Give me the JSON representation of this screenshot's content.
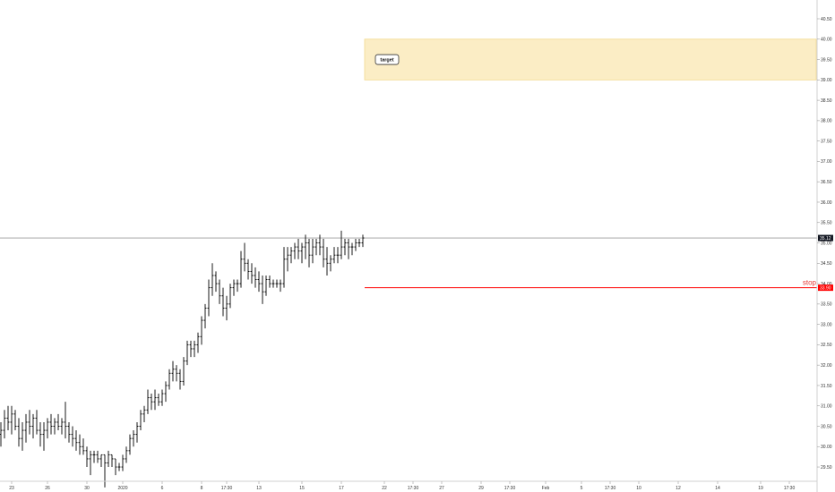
{
  "chart_data": {
    "type": "ohlc",
    "colors": {
      "bars": "#000000",
      "target_fill": "#fbedc5",
      "target_border": "#f2d98f",
      "stop_line": "#ff0000",
      "last_price_line": "#9e9e9e",
      "axis_text": "#333333"
    },
    "y_axis": {
      "ylim": [
        29.1,
        41.0
      ],
      "position": "right",
      "ticks": [
        "29.50",
        "30.00",
        "30.50",
        "31.00",
        "31.50",
        "32.00",
        "32.50",
        "33.00",
        "33.50",
        "34.00",
        "34.50",
        "35.00",
        "35.50",
        "36.00",
        "36.50",
        "37.00",
        "37.50",
        "38.00",
        "38.50",
        "39.00",
        "39.50",
        "40.00",
        "40.50"
      ]
    },
    "x_axis": {
      "ticks": [
        "23",
        "26",
        "30",
        "2020",
        "6",
        "8",
        "17:30",
        "13",
        "15",
        "17",
        "22",
        "17:30",
        "27",
        "29",
        "17:30",
        "Feb",
        "5",
        "17:30",
        "10",
        "12",
        "14",
        "19",
        "17:30"
      ],
      "tick_bars": [
        3,
        13,
        24,
        34,
        45,
        56,
        63,
        72,
        84,
        95,
        107,
        115,
        123,
        134,
        142,
        152,
        162,
        170,
        178,
        189,
        200,
        212,
        220
      ]
    },
    "ohlc": [
      [
        30.3,
        30.6,
        30.0,
        30.4
      ],
      [
        30.4,
        30.9,
        30.2,
        30.7
      ],
      [
        30.7,
        31.0,
        30.4,
        30.6
      ],
      [
        30.6,
        31.0,
        30.3,
        30.8
      ],
      [
        30.8,
        30.9,
        30.4,
        30.5
      ],
      [
        30.5,
        30.7,
        30.0,
        30.2
      ],
      [
        30.2,
        30.6,
        29.9,
        30.4
      ],
      [
        30.4,
        30.8,
        30.1,
        30.6
      ],
      [
        30.6,
        30.9,
        30.3,
        30.5
      ],
      [
        30.5,
        30.8,
        30.2,
        30.7
      ],
      [
        30.7,
        30.9,
        30.3,
        30.4
      ],
      [
        30.4,
        30.6,
        30.0,
        30.3
      ],
      [
        30.3,
        30.6,
        29.9,
        30.4
      ],
      [
        30.4,
        30.7,
        30.2,
        30.6
      ],
      [
        30.6,
        30.8,
        30.3,
        30.5
      ],
      [
        30.5,
        30.7,
        30.3,
        30.6
      ],
      [
        30.6,
        30.8,
        30.4,
        30.5
      ],
      [
        30.5,
        30.7,
        30.3,
        30.6
      ],
      [
        30.6,
        31.1,
        30.2,
        30.5
      ],
      [
        30.5,
        30.6,
        30.1,
        30.3
      ],
      [
        30.3,
        30.5,
        30.0,
        30.2
      ],
      [
        30.2,
        30.4,
        29.9,
        30.1
      ],
      [
        30.1,
        30.3,
        29.8,
        30.0
      ],
      [
        30.0,
        30.2,
        29.8,
        29.9
      ],
      [
        29.9,
        30.0,
        29.5,
        29.7
      ],
      [
        29.7,
        29.9,
        29.3,
        29.8
      ],
      [
        29.8,
        29.9,
        29.6,
        29.8
      ],
      [
        29.8,
        29.9,
        29.6,
        29.7
      ],
      [
        29.7,
        29.8,
        29.5,
        29.8
      ],
      [
        29.8,
        29.8,
        29.0,
        29.6
      ],
      [
        29.6,
        29.9,
        29.5,
        29.8
      ],
      [
        29.8,
        29.8,
        29.5,
        29.7
      ],
      [
        29.7,
        29.7,
        29.3,
        29.5
      ],
      [
        29.5,
        29.6,
        29.4,
        29.5
      ],
      [
        29.5,
        29.8,
        29.4,
        29.7
      ],
      [
        29.7,
        30.0,
        29.6,
        29.9
      ],
      [
        29.9,
        30.3,
        29.8,
        30.2
      ],
      [
        30.2,
        30.4,
        30.0,
        30.3
      ],
      [
        30.3,
        30.6,
        30.1,
        30.5
      ],
      [
        30.5,
        30.9,
        30.4,
        30.8
      ],
      [
        30.8,
        31.0,
        30.6,
        30.9
      ],
      [
        30.9,
        31.4,
        30.8,
        31.2
      ],
      [
        31.2,
        31.3,
        30.9,
        31.1
      ],
      [
        31.1,
        31.4,
        30.9,
        31.2
      ],
      [
        31.2,
        31.3,
        31.0,
        31.1
      ],
      [
        31.1,
        31.4,
        31.0,
        31.3
      ],
      [
        31.3,
        31.6,
        31.1,
        31.5
      ],
      [
        31.5,
        31.9,
        31.4,
        31.8
      ],
      [
        31.8,
        32.1,
        31.6,
        31.9
      ],
      [
        31.9,
        32.0,
        31.6,
        31.8
      ],
      [
        31.8,
        31.9,
        31.4,
        31.6
      ],
      [
        31.6,
        32.2,
        31.5,
        32.1
      ],
      [
        32.1,
        32.6,
        32.0,
        32.5
      ],
      [
        32.5,
        32.6,
        32.2,
        32.4
      ],
      [
        32.4,
        32.6,
        32.2,
        32.5
      ],
      [
        32.5,
        32.8,
        32.3,
        32.7
      ],
      [
        32.7,
        33.2,
        32.5,
        33.1
      ],
      [
        33.1,
        33.5,
        32.9,
        33.4
      ],
      [
        33.4,
        34.1,
        33.2,
        33.9
      ],
      [
        33.9,
        34.5,
        33.7,
        34.2
      ],
      [
        34.2,
        34.3,
        33.8,
        34.0
      ],
      [
        34.0,
        34.1,
        33.5,
        33.7
      ],
      [
        33.7,
        33.9,
        33.2,
        33.4
      ],
      [
        33.4,
        33.7,
        33.1,
        33.5
      ],
      [
        33.5,
        34.0,
        33.4,
        33.9
      ],
      [
        33.9,
        34.1,
        33.7,
        34.0
      ],
      [
        34.0,
        34.1,
        33.8,
        34.0
      ],
      [
        34.0,
        34.8,
        33.9,
        34.6
      ],
      [
        34.6,
        35.0,
        34.3,
        34.5
      ],
      [
        34.5,
        34.6,
        34.1,
        34.3
      ],
      [
        34.3,
        34.5,
        34.0,
        34.2
      ],
      [
        34.2,
        34.4,
        33.9,
        34.1
      ],
      [
        34.1,
        34.3,
        33.8,
        34.0
      ],
      [
        34.0,
        34.2,
        33.5,
        33.8
      ],
      [
        33.8,
        34.2,
        33.7,
        34.1
      ],
      [
        34.1,
        34.2,
        33.9,
        34.0
      ],
      [
        34.0,
        34.1,
        33.9,
        34.0
      ],
      [
        34.0,
        34.1,
        33.9,
        34.0
      ],
      [
        34.0,
        34.1,
        33.8,
        34.0
      ],
      [
        34.0,
        34.9,
        33.9,
        34.6
      ],
      [
        34.6,
        34.9,
        34.3,
        34.7
      ],
      [
        34.7,
        34.9,
        34.5,
        34.8
      ],
      [
        34.8,
        35.0,
        34.6,
        34.9
      ],
      [
        34.9,
        35.1,
        34.6,
        34.8
      ],
      [
        34.8,
        35.0,
        34.5,
        34.9
      ],
      [
        34.9,
        35.2,
        34.6,
        35.0
      ],
      [
        35.0,
        35.1,
        34.4,
        34.7
      ],
      [
        34.7,
        35.1,
        34.5,
        34.9
      ],
      [
        34.9,
        35.1,
        34.7,
        35.0
      ],
      [
        35.0,
        35.2,
        34.7,
        34.9
      ],
      [
        34.9,
        35.1,
        34.4,
        34.6
      ],
      [
        34.6,
        34.9,
        34.2,
        34.5
      ],
      [
        34.5,
        34.7,
        34.3,
        34.6
      ],
      [
        34.6,
        34.9,
        34.5,
        34.7
      ],
      [
        34.7,
        34.9,
        34.5,
        34.7
      ],
      [
        34.7,
        35.3,
        34.6,
        34.9
      ],
      [
        34.9,
        35.1,
        34.7,
        35.0
      ],
      [
        35.0,
        35.1,
        34.6,
        34.9
      ],
      [
        34.9,
        35.0,
        34.7,
        34.9
      ],
      [
        34.9,
        35.1,
        34.8,
        35.0
      ],
      [
        35.0,
        35.1,
        34.9,
        35.0
      ],
      [
        35.0,
        35.2,
        34.9,
        35.12
      ]
    ],
    "target_zone": {
      "label": "target",
      "low": 39.0,
      "high": 40.0,
      "start_bar": 101
    },
    "stop": {
      "label": "stop",
      "value": 33.9,
      "price_tag": "33.90",
      "start_bar": 101
    },
    "last_price": {
      "value": 35.12,
      "label": "35.12"
    }
  }
}
